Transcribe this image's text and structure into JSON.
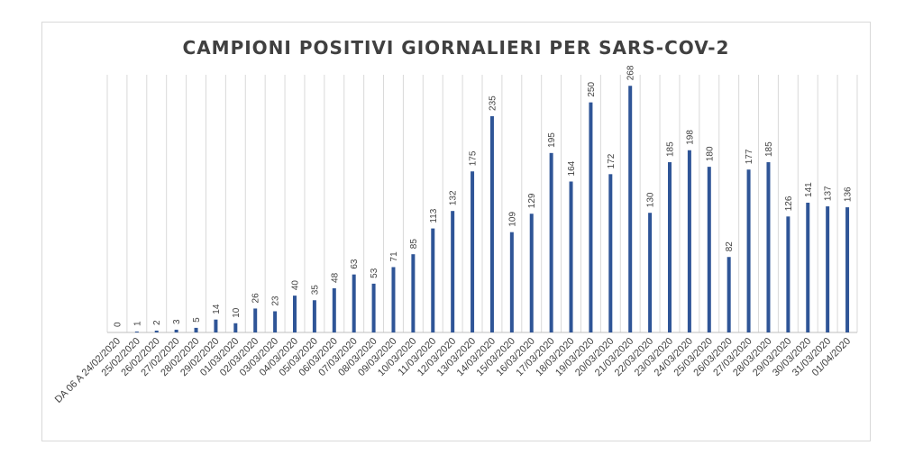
{
  "chart_data": {
    "type": "bar",
    "title": "CAMPIONI POSITIVI GIORNALIERI PER SARS-COV-2",
    "xlabel": "",
    "ylabel": "",
    "ylim": [
      0,
      280
    ],
    "grid": "vertical category lines",
    "legend": "none",
    "bar_color": "#2f5597",
    "categories": [
      "DA 06 A 24/02/2020",
      "25/02/2020",
      "26/02/2020",
      "27/02/2020",
      "28/02/2020",
      "29/02/2020",
      "01/03/2020",
      "02/03/2020",
      "03/03/2020",
      "04/03/2020",
      "05/03/2020",
      "06/03/2020",
      "07/03/2020",
      "08/03/2020",
      "09/03/2020",
      "10/03/2020",
      "11/03/2020",
      "12/03/2020",
      "13/03/2020",
      "14/03/2020",
      "15/03/2020",
      "16/03/2020",
      "17/03/2020",
      "18/03/2020",
      "19/03/2020",
      "20/03/2020",
      "21/03/2020",
      "22/03/2020",
      "23/03/2020",
      "24/03/2020",
      "25/03/2020",
      "26/03/2020",
      "27/03/2020",
      "28/03/2020",
      "29/03/2020",
      "30/03/2020",
      "31/03/2020",
      "01/04/2020"
    ],
    "values": [
      0,
      1,
      2,
      3,
      5,
      14,
      10,
      26,
      23,
      40,
      35,
      48,
      63,
      53,
      71,
      85,
      113,
      132,
      175,
      235,
      109,
      129,
      195,
      164,
      250,
      172,
      268,
      130,
      185,
      198,
      180,
      82,
      177,
      185,
      126,
      141,
      137,
      136
    ]
  }
}
